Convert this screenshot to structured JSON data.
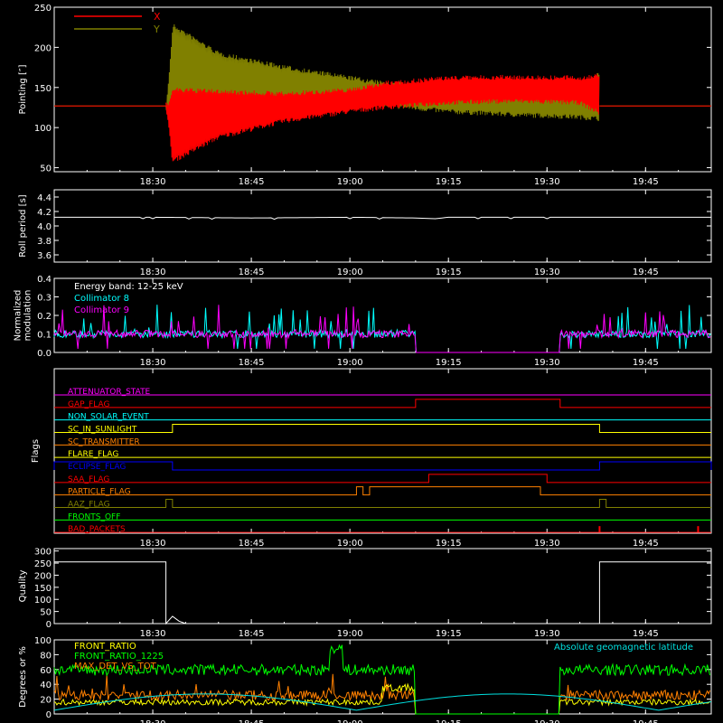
{
  "x_ticks": [
    "18:30",
    "18:45",
    "19:00",
    "19:15",
    "19:30",
    "19:45"
  ],
  "chart_data": [
    {
      "type": "line",
      "ylabel": "Pointing [″]",
      "yticks": [
        "50",
        "100",
        "150",
        "200",
        "250"
      ],
      "ylim": [
        45,
        250
      ],
      "x_range": [
        "18:15",
        "19:55"
      ],
      "series": [
        {
          "name": "X",
          "color": "#ff0000",
          "envelope": {
            "time": [
              "18:15",
              "18:32",
              "18:33",
              "18:40",
              "18:50",
              "19:00",
              "19:05",
              "19:15",
              "19:25",
              "19:35",
              "19:38",
              "19:55"
            ],
            "low": [
              127,
              127,
              55,
              85,
              105,
              117,
              122,
              128,
              130,
              128,
              115,
              127
            ],
            "high": [
              127,
              127,
              150,
              148,
              145,
              150,
              158,
              165,
              166,
              165,
              168,
              127
            ]
          }
        },
        {
          "name": "Y",
          "color": "#808000",
          "envelope": {
            "time": [
              "18:15",
              "18:32",
              "18:33",
              "18:40",
              "18:50",
              "19:00",
              "19:05",
              "19:15",
              "19:25",
              "19:35",
              "19:38",
              "19:55"
            ],
            "low": [
              127,
              127,
              105,
              110,
              118,
              127,
              125,
              117,
              113,
              110,
              108,
              127
            ],
            "high": [
              127,
              127,
              230,
              195,
              178,
              165,
              158,
              155,
              152,
              155,
              170,
              127
            ]
          }
        }
      ]
    },
    {
      "type": "line",
      "ylabel": "Roll period [s]",
      "yticks": [
        "3.6",
        "3.8",
        "4.0",
        "4.2",
        "4.4"
      ],
      "ylim": [
        3.5,
        4.5
      ],
      "series": [
        {
          "color": "#ffffff",
          "x": [
            "18:15",
            "18:30",
            "18:45",
            "19:00",
            "19:10",
            "19:13",
            "19:15",
            "19:30",
            "19:45",
            "19:55"
          ],
          "y": [
            4.12,
            4.12,
            4.11,
            4.12,
            4.11,
            4.1,
            4.12,
            4.12,
            4.12,
            4.12
          ]
        }
      ]
    },
    {
      "type": "line",
      "ylabel": "Normalized\nmodulation",
      "yticks": [
        "0.0",
        "0.1",
        "0.2",
        "0.3",
        "0.4"
      ],
      "ylim": [
        0,
        0.4
      ],
      "annotation": "Energy band: 12-25 keV",
      "series": [
        {
          "name": "Collimator 8",
          "color": "#00ffff"
        },
        {
          "name": "Collimator 9",
          "color": "#ff00ff"
        }
      ],
      "gap": [
        "19:10",
        "19:32"
      ],
      "baseline": 0.1
    },
    {
      "type": "line",
      "ylabel": "Flags",
      "flags": [
        {
          "name": "ATTENUATOR_STATE",
          "color": "#ff00ff",
          "high": []
        },
        {
          "name": "GAP_FLAG",
          "color": "#ff0000",
          "high": [
            [
              "19:10",
              "19:32"
            ]
          ]
        },
        {
          "name": "NON_SOLAR_EVENT",
          "color": "#00ffff",
          "high": []
        },
        {
          "name": "SC_IN_SUNLIGHT",
          "color": "#ffff00",
          "high": [
            [
              "18:33",
              "19:38"
            ]
          ]
        },
        {
          "name": "SC_TRANSMITTER",
          "color": "#ff8000",
          "high": []
        },
        {
          "name": "FLARE_FLAG",
          "color": "#ffff00",
          "high": []
        },
        {
          "name": "ECLIPSE_FLAG",
          "color": "#0000ff",
          "high": [
            [
              "18:15",
              "18:33"
            ],
            [
              "19:38",
              "19:55"
            ]
          ]
        },
        {
          "name": "SAA_FLAG",
          "color": "#ff0000",
          "high": [
            [
              "19:12",
              "19:30"
            ]
          ]
        },
        {
          "name": "PARTICLE_FLAG",
          "color": "#ff8000",
          "high": [
            [
              "19:01",
              "19:02"
            ],
            [
              "19:03",
              "19:29"
            ]
          ]
        },
        {
          "name": "AAZ_FLAG",
          "color": "#808000",
          "high": [
            [
              "18:32",
              "18:33"
            ],
            [
              "19:38",
              "19:39"
            ]
          ]
        },
        {
          "name": "FRONTS_OFF",
          "color": "#00ff00",
          "high": []
        },
        {
          "name": "BAD_PACKETS",
          "color": "#ff0000",
          "spikes": [
            "19:38",
            "19:53"
          ]
        }
      ]
    },
    {
      "type": "line",
      "ylabel": "Quality",
      "yticks": [
        "0",
        "50",
        "100",
        "150",
        "200",
        "250",
        "300"
      ],
      "ylim": [
        0,
        310
      ],
      "series": [
        {
          "color": "#ffffff",
          "x": [
            "18:15",
            "18:32",
            "18:32",
            "18:33",
            "18:34",
            "18:35",
            "19:38",
            "19:38",
            "19:55"
          ],
          "y": [
            255,
            255,
            0,
            30,
            10,
            0,
            0,
            255,
            255
          ]
        }
      ]
    },
    {
      "type": "line",
      "ylabel": "Degrees or %",
      "yticks": [
        "0",
        "20",
        "40",
        "60",
        "80",
        "100"
      ],
      "ylim": [
        0,
        100
      ],
      "annotation": "Absolute geomagnetic latitude",
      "series": [
        {
          "name": "FRONT_RATIO",
          "color": "#ffff00"
        },
        {
          "name": "FRONT_RATIO_1225",
          "color": "#00ff00"
        },
        {
          "name": "MAX_DET_VS_TOT",
          "color": "#ff8000"
        },
        {
          "name": "Absolute geomagnetic latitude",
          "color": "#00e0e0"
        }
      ]
    }
  ]
}
